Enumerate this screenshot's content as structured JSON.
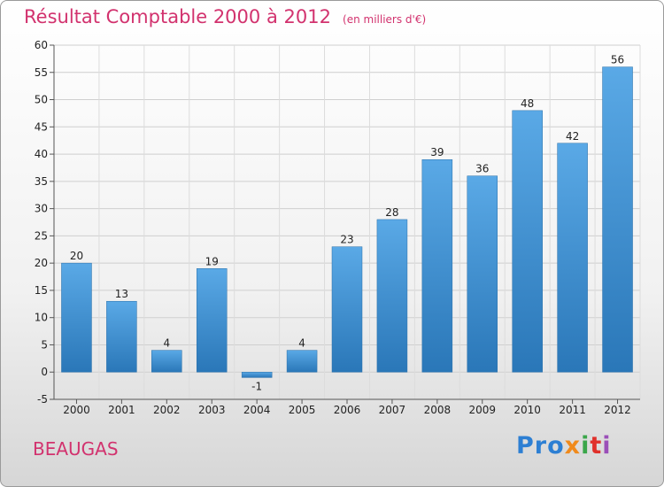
{
  "chart_data": {
    "type": "bar",
    "title": "Résultat Comptable 2000 à 2012",
    "subtitle": "(en milliers d'€)",
    "categories": [
      "2000",
      "2001",
      "2002",
      "2003",
      "2004",
      "2005",
      "2006",
      "2007",
      "2008",
      "2009",
      "2010",
      "2011",
      "2012"
    ],
    "values": [
      20,
      13,
      4,
      19,
      -1,
      4,
      23,
      28,
      39,
      36,
      48,
      42,
      56
    ],
    "value_labels": [
      "20",
      "13",
      "4",
      "19",
      "-1",
      "4",
      "23",
      "28",
      "39",
      "36",
      "48",
      "42",
      "56"
    ],
    "ylim": [
      -5,
      60
    ],
    "yticks": [
      "-5",
      "0",
      "5",
      "10",
      "15",
      "20",
      "25",
      "30",
      "35",
      "40",
      "45",
      "50",
      "55",
      "60"
    ],
    "ytick_values": [
      -5,
      0,
      5,
      10,
      15,
      20,
      25,
      30,
      35,
      40,
      45,
      50,
      55,
      60
    ],
    "grid": "horizontal",
    "bar_color": "#3d8fd6",
    "bar_color_light": "#5aa9e6",
    "bar_color_dark": "#2a77b8"
  },
  "footer": {
    "place": "BEAUGAS",
    "logo": [
      "Pro",
      "x",
      "i",
      "t",
      "i"
    ]
  }
}
